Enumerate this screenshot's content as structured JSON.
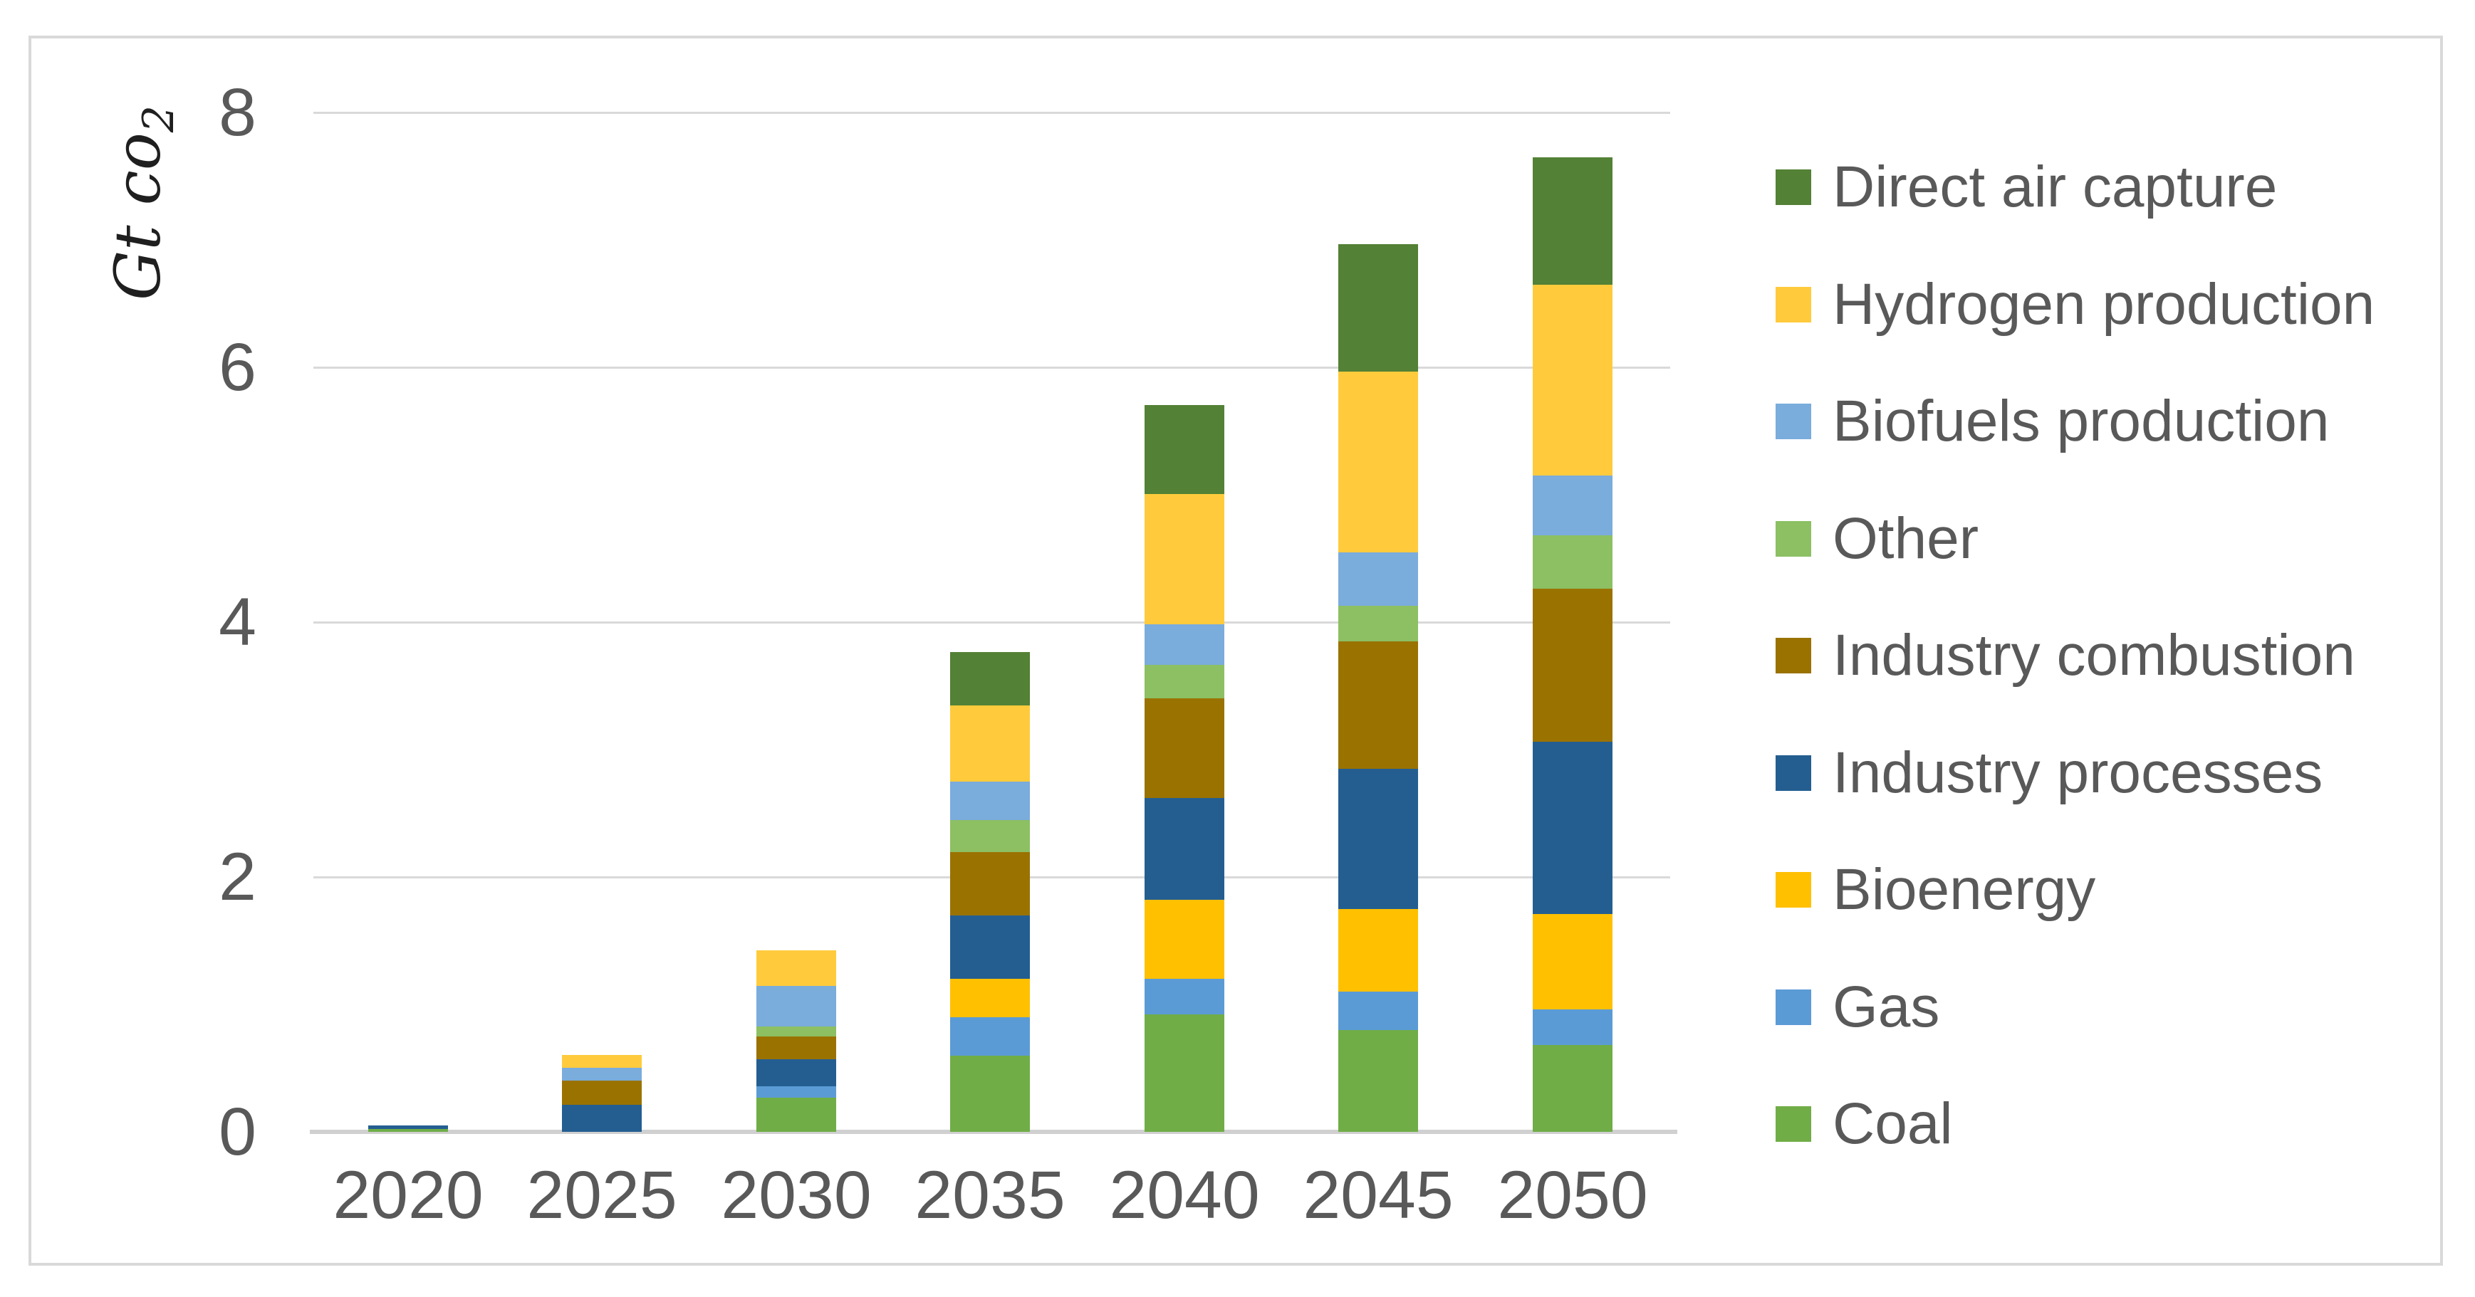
{
  "y_axis": {
    "title_text": "Gt co",
    "title_subscript": "2",
    "tick_labels": [
      "0",
      "2",
      "4",
      "6",
      "8"
    ]
  },
  "x_axis": {
    "tick_labels": [
      "2020",
      "2025",
      "2030",
      "2035",
      "2040",
      "2045",
      "2050"
    ]
  },
  "legend": {
    "items": [
      {
        "label": "Direct air capture",
        "color": "#538135"
      },
      {
        "label": "Hydrogen production",
        "color": "#FFCB3D"
      },
      {
        "label": "Biofuels production",
        "color": "#7AACDC"
      },
      {
        "label": "Other",
        "color": "#8CC063"
      },
      {
        "label": "Industry combustion",
        "color": "#9A7200"
      },
      {
        "label": "Industry processes",
        "color": "#245E91"
      },
      {
        "label": "Bioenergy",
        "color": "#FFC000"
      },
      {
        "label": "Gas",
        "color": "#5B9BD5"
      },
      {
        "label": "Coal",
        "color": "#70AD47"
      }
    ]
  },
  "chart_data": {
    "type": "bar",
    "stacked": true,
    "title": "",
    "xlabel": "",
    "ylabel": "Gt co2",
    "ylim": [
      0,
      8
    ],
    "y_ticks": [
      0,
      2,
      4,
      6,
      8
    ],
    "grid": true,
    "legend_position": "right",
    "categories": [
      "2020",
      "2025",
      "2030",
      "2035",
      "2040",
      "2045",
      "2050"
    ],
    "series": [
      {
        "name": "Coal",
        "color": "#70AD47",
        "values": [
          0.02,
          0,
          0.27,
          0.6,
          0.92,
          0.8,
          0.68
        ]
      },
      {
        "name": "Gas",
        "color": "#5B9BD5",
        "values": [
          0,
          0,
          0.09,
          0.3,
          0.28,
          0.3,
          0.28
        ]
      },
      {
        "name": "Bioenergy",
        "color": "#FFC000",
        "values": [
          0,
          0,
          0,
          0.3,
          0.62,
          0.65,
          0.75
        ]
      },
      {
        "name": "Industry processes",
        "color": "#245E91",
        "values": [
          0.03,
          0.21,
          0.21,
          0.5,
          0.8,
          1.1,
          1.35
        ]
      },
      {
        "name": "Industry combustion",
        "color": "#9A7200",
        "values": [
          0,
          0.19,
          0.18,
          0.5,
          0.78,
          1.0,
          1.2
        ]
      },
      {
        "name": "Other",
        "color": "#8CC063",
        "values": [
          0,
          0,
          0.08,
          0.25,
          0.26,
          0.28,
          0.42
        ]
      },
      {
        "name": "Biofuels production",
        "color": "#7AACDC",
        "values": [
          0,
          0.1,
          0.32,
          0.3,
          0.32,
          0.42,
          0.47
        ]
      },
      {
        "name": "Hydrogen production",
        "color": "#FFCB3D",
        "values": [
          0,
          0.1,
          0.28,
          0.6,
          1.02,
          1.42,
          1.5
        ]
      },
      {
        "name": "Direct air capture",
        "color": "#538135",
        "values": [
          0,
          0,
          0,
          0.42,
          0.7,
          1.0,
          1.0
        ]
      }
    ],
    "totals": [
      0.05,
      0.6,
      1.43,
      3.77,
      5.7,
      6.97,
      7.65
    ]
  }
}
